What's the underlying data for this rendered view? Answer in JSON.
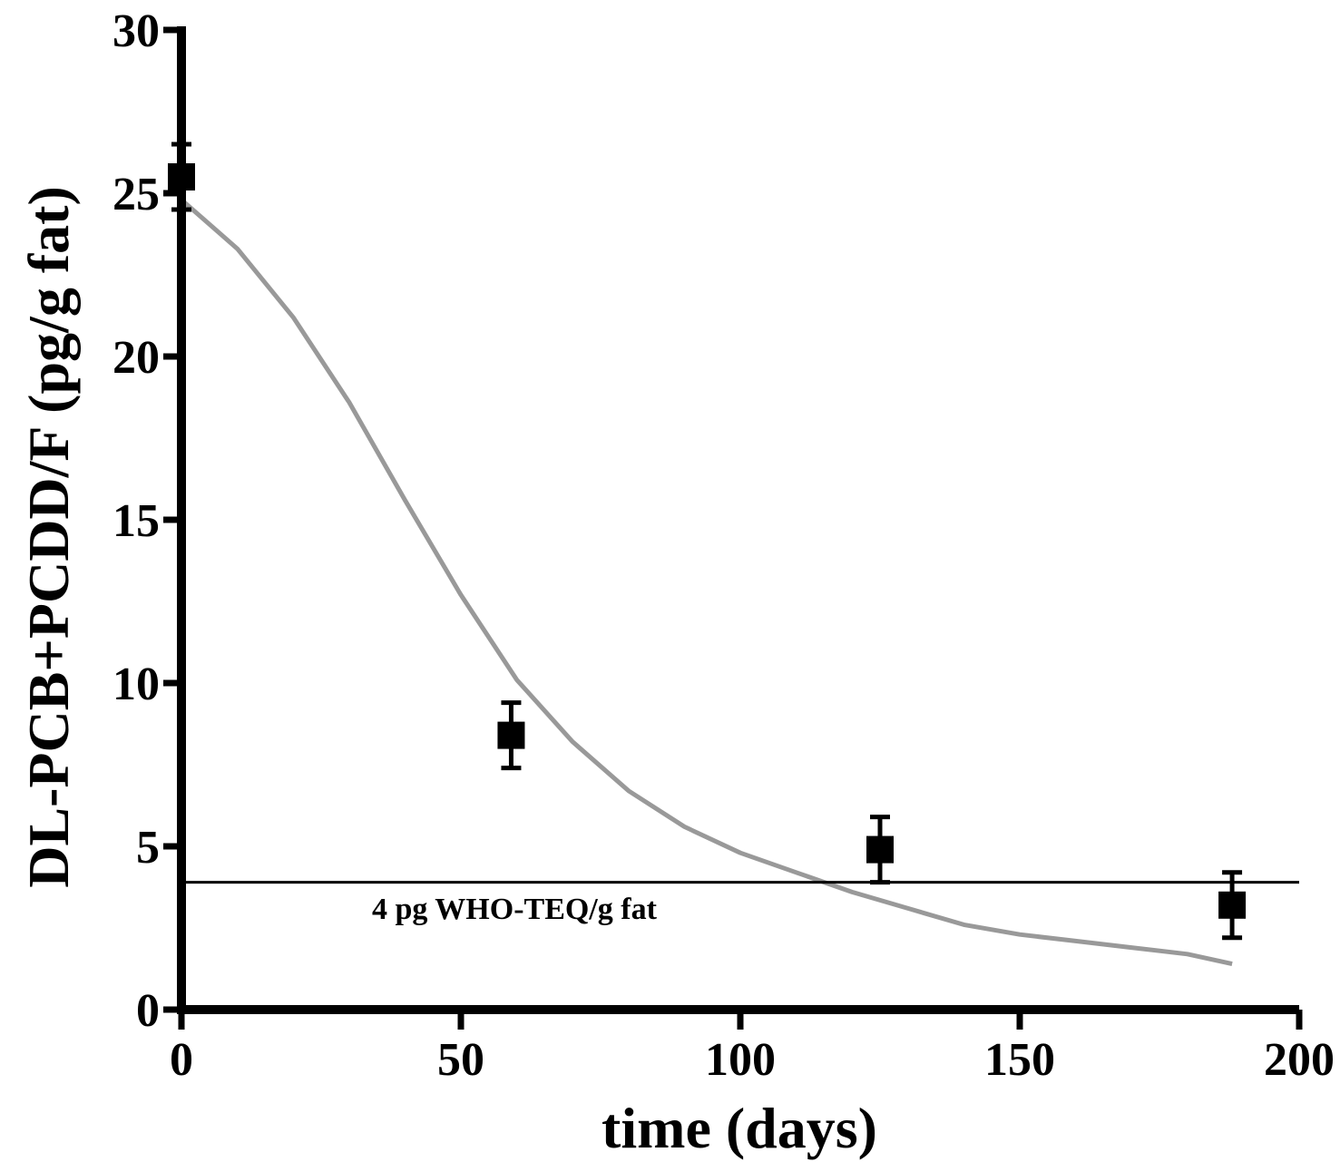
{
  "chart_data": {
    "type": "scatter",
    "title": "",
    "xlabel": "time (days)",
    "ylabel": "DL-PCB+PCDD/F (pg/g fat)",
    "xlim": [
      0,
      200
    ],
    "ylim": [
      0,
      30
    ],
    "xticks": [
      0,
      50,
      100,
      150,
      200
    ],
    "yticks": [
      0,
      5,
      10,
      15,
      20,
      25,
      30
    ],
    "grid": false,
    "legend": "none",
    "series": [
      {
        "kind": "points-with-error-bars",
        "marker": "square",
        "color": "#000000",
        "x": [
          0,
          59,
          125,
          188
        ],
        "y": [
          25.5,
          8.4,
          4.9,
          3.2
        ],
        "error": [
          1.0,
          1.0,
          1.0,
          1.0
        ]
      },
      {
        "kind": "fitted-curve",
        "color": "#999999",
        "x": [
          0,
          10,
          20,
          30,
          40,
          50,
          60,
          70,
          80,
          90,
          100,
          110,
          120,
          130,
          140,
          150,
          160,
          170,
          180,
          188
        ],
        "y": [
          24.8,
          23.3,
          21.2,
          18.6,
          15.6,
          12.7,
          10.1,
          8.2,
          6.7,
          5.6,
          4.8,
          4.2,
          3.6,
          3.1,
          2.6,
          2.3,
          2.1,
          1.9,
          1.7,
          1.4
        ]
      }
    ],
    "reference_line": {
      "y": 3.9,
      "color": "#000000",
      "label": "4 pg WHO-TEQ/g fat"
    }
  }
}
